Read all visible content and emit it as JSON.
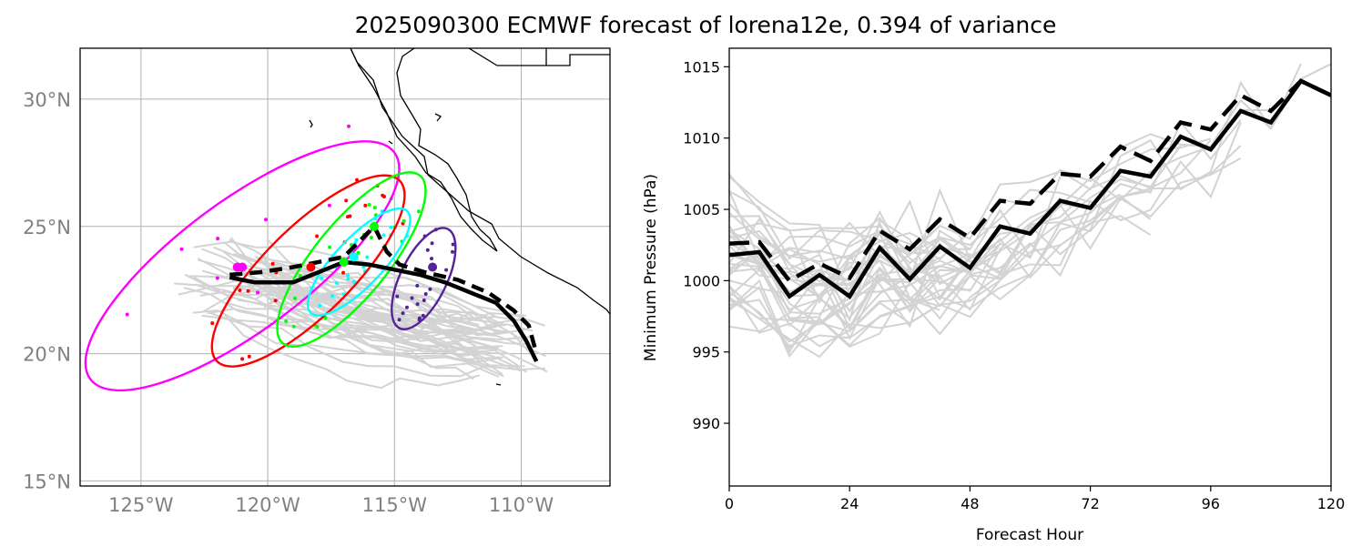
{
  "title": "2025090300 ECMWF forecast of lorena12e, 0.394 of variance",
  "chart_data": [
    {
      "type": "map",
      "lon_range": [
        -127.4,
        -106.5
      ],
      "lat_range": [
        14.8,
        32.0
      ],
      "lon_ticks": [
        -125,
        -120,
        -115,
        -110
      ],
      "lon_tick_labels": [
        "125°W",
        "120°W",
        "115°W",
        "110°W"
      ],
      "lat_ticks": [
        15,
        20,
        25,
        30
      ],
      "lat_tick_labels": [
        "15°N",
        "20°N",
        "25°N",
        "30°N"
      ],
      "grid": true,
      "colors": {
        "ensemble": "#d3d3d3",
        "mean": "#000000",
        "coast": "#000000",
        "grid": "#b0b0b0",
        "tick": "#808080"
      },
      "mean_track": [
        [
          -121.5,
          23.0
        ],
        [
          -120.5,
          22.8
        ],
        [
          -119.0,
          22.8
        ],
        [
          -118.0,
          23.2
        ],
        [
          -117.0,
          23.6
        ],
        [
          -116.0,
          23.5
        ],
        [
          -115.0,
          23.3
        ],
        [
          -114.0,
          23.1
        ],
        [
          -113.0,
          22.8
        ],
        [
          -112.0,
          22.4
        ],
        [
          -111.0,
          22.0
        ],
        [
          -110.3,
          21.3
        ],
        [
          -109.8,
          20.5
        ],
        [
          -109.4,
          19.7
        ]
      ],
      "deterministic_track": [
        [
          -121.5,
          23.1
        ],
        [
          -120.3,
          23.2
        ],
        [
          -119.0,
          23.4
        ],
        [
          -118.0,
          23.6
        ],
        [
          -117.0,
          23.8
        ],
        [
          -116.3,
          24.5
        ],
        [
          -115.8,
          25.0
        ],
        [
          -115.3,
          24.0
        ],
        [
          -114.8,
          23.5
        ],
        [
          -113.8,
          23.2
        ],
        [
          -112.5,
          22.9
        ],
        [
          -111.3,
          22.4
        ],
        [
          -110.3,
          21.7
        ],
        [
          -109.7,
          21.1
        ],
        [
          -109.4,
          20.0
        ]
      ],
      "ellipses": [
        {
          "color": "#ff00ff",
          "center": [
            -121.0,
            23.4
          ],
          "points": [
            [
              -127.0,
              19.0
            ],
            [
              -115.0,
              27.9
            ]
          ]
        },
        {
          "color": "#ff0000",
          "center": [
            -118.5,
            23.4
          ],
          "points": [
            [
              -122.0,
              19.7
            ],
            [
              -114.8,
              26.8
            ]
          ]
        },
        {
          "color": "#00ff00",
          "center": [
            -116.6,
            23.6
          ],
          "points": [
            [
              -119.4,
              20.4
            ],
            [
              -114.0,
              27.0
            ]
          ]
        },
        {
          "color": "#00ffff",
          "center": [
            -116.6,
            23.7
          ],
          "points": [
            [
              -118.3,
              21.6
            ],
            [
              -114.5,
              25.6
            ]
          ]
        },
        {
          "color": "#552299",
          "center": [
            -113.9,
            22.8
          ],
          "points": [
            [
              -114.8,
              21.0
            ],
            [
              -112.9,
              24.9
            ]
          ]
        }
      ],
      "means": [
        {
          "color": "#ff00ff",
          "lon": -121.2,
          "lat": 23.4
        },
        {
          "color": "#ff0000",
          "lon": -118.3,
          "lat": 23.4
        },
        {
          "color": "#00ff00",
          "lon": -117.0,
          "lat": 23.6
        },
        {
          "color": "#00ffff",
          "lon": -116.6,
          "lat": 23.8
        },
        {
          "color": "#00ff00",
          "lon": -115.8,
          "lat": 25.0
        },
        {
          "color": "#552299",
          "lon": -113.5,
          "lat": 23.4
        }
      ],
      "ensemble_count": 50
    },
    {
      "type": "line",
      "xlabel": "Forecast Hour",
      "ylabel": "Minimum Pressure (hPa)",
      "xlim": [
        0,
        120
      ],
      "ylim": [
        985.6,
        1016.3
      ],
      "xticks": [
        0,
        24,
        48,
        72,
        96,
        120
      ],
      "yticks": [
        990,
        995,
        1000,
        1005,
        1010,
        1015
      ],
      "x": [
        0,
        6,
        12,
        18,
        24,
        30,
        36,
        42,
        48,
        54,
        60,
        66,
        72,
        78,
        84,
        90,
        96,
        102,
        108,
        114,
        120
      ],
      "series": [
        {
          "style": "solid-black-thick",
          "values": [
            1001.8,
            1002.0,
            998.9,
            1000.4,
            998.9,
            1002.3,
            1000.1,
            1002.4,
            1000.9,
            1003.8,
            1003.3,
            1005.6,
            1005.1,
            1007.7,
            1007.3,
            1010.1,
            1009.2,
            1011.9,
            1011.1,
            1014.0,
            1013.0
          ]
        },
        {
          "style": "dashed-black-thick",
          "values": [
            1002.6,
            1002.7,
            1000.0,
            1001.2,
            1000.2,
            1003.5,
            1002.2,
            1004.3,
            1003.0,
            1005.6,
            1005.4,
            1007.5,
            1007.3,
            1009.4,
            1008.4,
            1011.1,
            1010.6,
            1013.0,
            1011.9,
            1014.0,
            1013.0
          ]
        }
      ],
      "ensemble_color": "#d3d3d3",
      "ensemble_count": 36
    }
  ]
}
